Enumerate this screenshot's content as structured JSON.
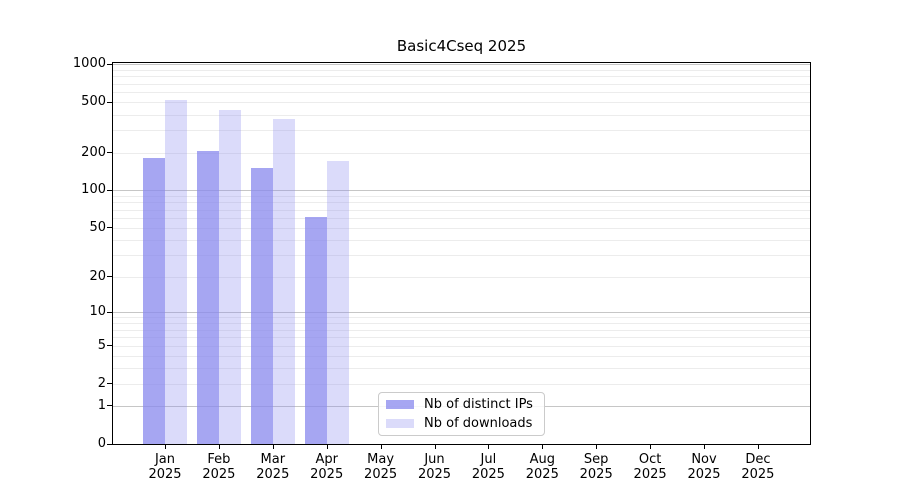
{
  "chart_data": {
    "type": "bar",
    "title": "Basic4Cseq 2025",
    "xlabel": "",
    "ylabel": "",
    "categories": [
      "Jan 2025",
      "Feb 2025",
      "Mar 2025",
      "Apr 2025",
      "May 2025",
      "Jun 2025",
      "Jul 2025",
      "Aug 2025",
      "Sep 2025",
      "Oct 2025",
      "Nov 2025",
      "Dec 2025"
    ],
    "series": [
      {
        "name": "Nb of distinct IPs",
        "color": "rgba(136,136,238,0.75)",
        "values": [
          180,
          206,
          152,
          61,
          null,
          null,
          null,
          null,
          null,
          null,
          null,
          null
        ]
      },
      {
        "name": "Nb of downloads",
        "color": "rgba(136,136,238,0.30)",
        "values": [
          525,
          432,
          368,
          172,
          null,
          null,
          null,
          null,
          null,
          null,
          null,
          null
        ]
      }
    ],
    "yscale": "log1p",
    "ylim": [
      0,
      1022
    ],
    "yticks": [
      0,
      1,
      2,
      5,
      10,
      20,
      50,
      100,
      200,
      500,
      1000
    ],
    "grid": {
      "orientation": "horizontal",
      "major": [
        1,
        10,
        100,
        1000
      ],
      "minor": [
        2,
        3,
        4,
        5,
        6,
        7,
        8,
        9,
        20,
        30,
        40,
        50,
        60,
        70,
        80,
        90,
        200,
        300,
        400,
        500,
        600,
        700,
        800,
        900
      ]
    },
    "legend_position": "lower center inside",
    "colors": {
      "bar_base": "#8888ee",
      "grid_major": "#c6c6c6",
      "grid_minor": "#ececec",
      "axis": "#000000"
    }
  }
}
